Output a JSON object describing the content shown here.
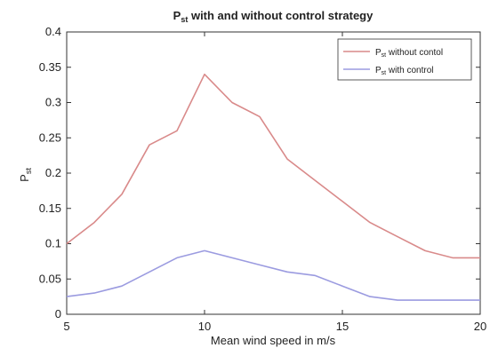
{
  "chart_data": {
    "type": "line",
    "title": "P",
    "title_sub": "st",
    "title_rest": " with and without control strategy",
    "xlabel": "Mean wind speed in m/s",
    "ylabel": "P",
    "ylabel_sub": "st",
    "xlim": [
      5,
      20
    ],
    "ylim": [
      0,
      0.4
    ],
    "x_ticks": [
      "5",
      "10",
      "15",
      "20"
    ],
    "y_ticks": [
      "0",
      "0.05",
      "0.1",
      "0.15",
      "0.2",
      "0.25",
      "0.3",
      "0.35",
      "0.4"
    ],
    "x_tick_values": [
      5,
      10,
      15,
      20
    ],
    "y_tick_values": [
      0,
      0.05,
      0.1,
      0.15,
      0.2,
      0.25,
      0.3,
      0.35,
      0.4
    ],
    "grid": false,
    "legend_position": "top-right",
    "x": [
      5,
      6,
      7,
      8,
      9,
      10,
      11,
      12,
      13,
      14,
      15,
      16,
      17,
      18,
      19,
      20
    ],
    "series": [
      {
        "name": "without contol",
        "legend_prefix": "P",
        "legend_sub": "st",
        "color": "#d98a8a",
        "values": [
          0.1,
          0.13,
          0.17,
          0.24,
          0.26,
          0.34,
          0.3,
          0.28,
          0.22,
          0.19,
          0.16,
          0.13,
          0.11,
          0.09,
          0.08,
          0.08
        ]
      },
      {
        "name": "with  control",
        "legend_prefix": "P",
        "legend_sub": "st",
        "color": "#9b9be0",
        "values": [
          0.025,
          0.03,
          0.04,
          0.06,
          0.08,
          0.09,
          0.08,
          0.07,
          0.06,
          0.055,
          0.04,
          0.025,
          0.02,
          0.02,
          0.02,
          0.02
        ]
      }
    ]
  }
}
